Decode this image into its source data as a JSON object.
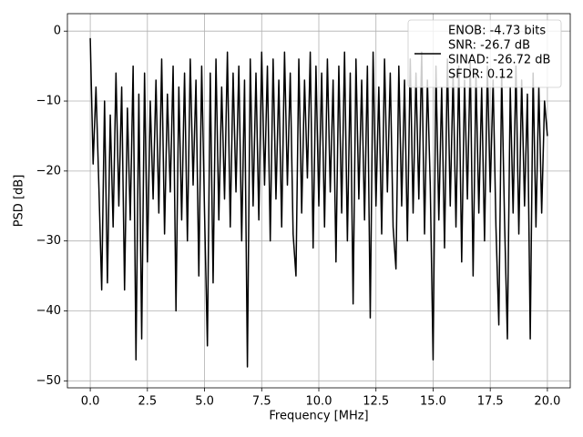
{
  "chart_data": {
    "type": "line",
    "x_label": "Frequency [MHz]",
    "y_label": "PSD [dB]",
    "xlim": [
      -1,
      21
    ],
    "ylim": [
      -51,
      2.5
    ],
    "xticks": [
      {
        "value": 0,
        "label": "0.0"
      },
      {
        "value": 2.5,
        "label": "2.5"
      },
      {
        "value": 5,
        "label": "5.0"
      },
      {
        "value": 7.5,
        "label": "7.5"
      },
      {
        "value": 10,
        "label": "10.0"
      },
      {
        "value": 12.5,
        "label": "12.5"
      },
      {
        "value": 15,
        "label": "15.0"
      },
      {
        "value": 17.5,
        "label": "17.5"
      },
      {
        "value": 20,
        "label": "20.0"
      }
    ],
    "yticks": [
      {
        "value": -50,
        "label": "−50"
      },
      {
        "value": -40,
        "label": "−40"
      },
      {
        "value": -30,
        "label": "−30"
      },
      {
        "value": -20,
        "label": "−20"
      },
      {
        "value": -10,
        "label": "−10"
      },
      0
    ],
    "grid": true,
    "legend": "upper right",
    "x": [
      0,
      0.125,
      0.25,
      0.375,
      0.5,
      0.625,
      0.75,
      0.875,
      1,
      1.125,
      1.25,
      1.375,
      1.5,
      1.625,
      1.75,
      1.875,
      2,
      2.125,
      2.25,
      2.375,
      2.5,
      2.625,
      2.75,
      2.875,
      3,
      3.125,
      3.25,
      3.375,
      3.5,
      3.625,
      3.75,
      3.875,
      4,
      4.125,
      4.25,
      4.375,
      4.5,
      4.625,
      4.75,
      4.875,
      5,
      5.125,
      5.25,
      5.375,
      5.5,
      5.625,
      5.75,
      5.875,
      6,
      6.125,
      6.25,
      6.375,
      6.5,
      6.625,
      6.75,
      6.875,
      7,
      7.125,
      7.25,
      7.375,
      7.5,
      7.625,
      7.75,
      7.875,
      8,
      8.125,
      8.25,
      8.375,
      8.5,
      8.625,
      8.75,
      8.875,
      9,
      9.125,
      9.25,
      9.375,
      9.5,
      9.625,
      9.75,
      9.875,
      10,
      10.125,
      10.25,
      10.375,
      10.5,
      10.625,
      10.75,
      10.875,
      11,
      11.125,
      11.25,
      11.375,
      11.5,
      11.625,
      11.75,
      11.875,
      12,
      12.125,
      12.25,
      12.375,
      12.5,
      12.625,
      12.75,
      12.875,
      13,
      13.125,
      13.25,
      13.375,
      13.5,
      13.625,
      13.75,
      13.875,
      14,
      14.125,
      14.25,
      14.375,
      14.5,
      14.625,
      14.75,
      14.875,
      15,
      15.125,
      15.25,
      15.375,
      15.5,
      15.625,
      15.75,
      15.875,
      16,
      16.125,
      16.25,
      16.375,
      16.5,
      16.625,
      16.75,
      16.875,
      17,
      17.125,
      17.25,
      17.375,
      17.5,
      17.625,
      17.75,
      17.875,
      18,
      18.125,
      18.25,
      18.375,
      18.5,
      18.625,
      18.75,
      18.875,
      19,
      19.125,
      19.25,
      19.375,
      19.5,
      19.625,
      19.75,
      19.875,
      20
    ],
    "series": [
      {
        "name": [
          "ENOB: -4.73 bits",
          "SNR: -26.7 dB",
          "SINAD: -26.72 dB",
          "SFDR: 0.12"
        ],
        "color": "#000000",
        "values": [
          -1,
          -19,
          -8,
          -22,
          -37,
          -10,
          -36,
          -12,
          -28,
          -6,
          -25,
          -8,
          -37,
          -11,
          -27,
          -5,
          -47,
          -9,
          -44,
          -6,
          -33,
          -10,
          -24,
          -7,
          -26,
          -4,
          -29,
          -9,
          -23,
          -5,
          -40,
          -8,
          -27,
          -6,
          -30,
          -4,
          -22,
          -7,
          -35,
          -5,
          -26,
          -45,
          -6,
          -36,
          -4,
          -27,
          -8,
          -24,
          -3,
          -28,
          -6,
          -23,
          -5,
          -30,
          -7,
          -48,
          -4,
          -25,
          -6,
          -27,
          -3,
          -22,
          -5,
          -30,
          -4,
          -24,
          -7,
          -28,
          -3,
          -22,
          -6,
          -29,
          -35,
          -4,
          -26,
          -7,
          -21,
          -3,
          -31,
          -5,
          -25,
          -6,
          -28,
          -4,
          -23,
          -7,
          -33,
          -5,
          -26,
          -3,
          -30,
          -6,
          -39,
          -4,
          -24,
          -7,
          -27,
          -5,
          -41,
          -3,
          -25,
          -8,
          -29,
          -4,
          -23,
          -6,
          -28,
          -34,
          -5,
          -25,
          -7,
          -30,
          -4,
          -26,
          -6,
          -24,
          -3,
          -29,
          -7,
          -22,
          -47,
          -5,
          -27,
          -8,
          -31,
          -4,
          -25,
          -6,
          -28,
          -5,
          -33,
          -7,
          -24,
          -4,
          -35,
          -6,
          -26,
          -8,
          -30,
          -5,
          -23,
          -7,
          -28,
          -42,
          -6,
          -27,
          -44,
          -8,
          -26,
          -5,
          -29,
          -7,
          -25,
          -9,
          -44,
          -6,
          -28,
          -8,
          -26,
          -10,
          -15
        ]
      }
    ]
  }
}
